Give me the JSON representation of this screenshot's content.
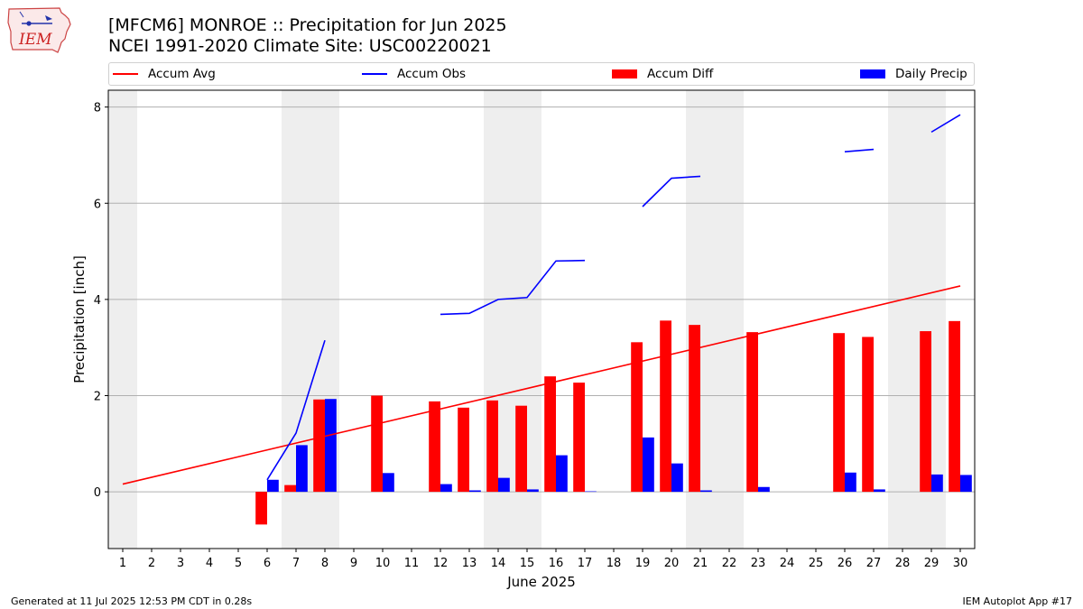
{
  "header": {
    "title_line1": "[MFCM6] MONROE :: Precipitation for Jun 2025",
    "title_line2": "NCEI 1991-2020 Climate Site: USC00220021"
  },
  "logo": {
    "text": "IEM",
    "icon": "iem-iowa-logo"
  },
  "footer": {
    "left": "Generated at 11 Jul 2025 12:53 PM CDT in 0.28s",
    "right": "IEM Autoplot App #17"
  },
  "colors": {
    "avg": "#ff0000",
    "obs": "#0000ff",
    "diff": "#ff0000",
    "daily": "#0000ff",
    "weekend": "#eeeeee",
    "grid": "#b0b0b0"
  },
  "chart_data": {
    "type": "bar",
    "xlabel": "June 2025",
    "ylabel": "Precipitation [inch]",
    "xlim": [
      0.5,
      30.5
    ],
    "ylim": [
      -1.18,
      8.35
    ],
    "yticks": [
      0,
      2,
      4,
      6,
      8
    ],
    "xticks": [
      1,
      2,
      3,
      4,
      5,
      6,
      7,
      8,
      9,
      10,
      11,
      12,
      13,
      14,
      15,
      16,
      17,
      18,
      19,
      20,
      21,
      22,
      23,
      24,
      25,
      26,
      27,
      28,
      29,
      30
    ],
    "grid": "horizontal",
    "legend_position": "top",
    "shaded_weekends": [
      [
        0.5,
        1.5
      ],
      [
        6.5,
        8.5
      ],
      [
        13.5,
        15.5
      ],
      [
        20.5,
        22.5
      ],
      [
        27.5,
        29.5
      ]
    ],
    "series": [
      {
        "name": "Accum Avg",
        "kind": "line",
        "x": [
          1,
          30
        ],
        "values": [
          0.16,
          4.28
        ]
      },
      {
        "name": "Accum Obs",
        "kind": "line",
        "segments": [
          [
            [
              6,
              0.25
            ],
            [
              7,
              1.22
            ],
            [
              8,
              3.15
            ]
          ],
          [
            [
              12,
              3.69
            ],
            [
              13,
              3.71
            ],
            [
              14,
              4.0
            ],
            [
              15,
              4.04
            ],
            [
              16,
              4.8
            ],
            [
              17,
              4.81
            ]
          ],
          [
            [
              19,
              5.93
            ],
            [
              20,
              6.52
            ],
            [
              21,
              6.56
            ]
          ],
          [
            [
              26,
              7.07
            ],
            [
              27,
              7.12
            ]
          ],
          [
            [
              29,
              7.48
            ],
            [
              30,
              7.84
            ]
          ]
        ]
      },
      {
        "name": "Accum Diff",
        "kind": "bar",
        "x": [
          6,
          7,
          8,
          10,
          12,
          13,
          14,
          15,
          16,
          17,
          19,
          20,
          21,
          23,
          26,
          27,
          29,
          30
        ],
        "values": [
          -0.68,
          0.14,
          1.92,
          2.0,
          1.88,
          1.75,
          1.9,
          1.79,
          2.4,
          2.27,
          3.11,
          3.56,
          3.47,
          3.32,
          3.3,
          3.22,
          3.34,
          3.55
        ]
      },
      {
        "name": "Daily Precip",
        "kind": "bar",
        "x": [
          6,
          7,
          8,
          10,
          12,
          13,
          14,
          15,
          16,
          17,
          19,
          20,
          21,
          23,
          26,
          27,
          29,
          30
        ],
        "values": [
          0.25,
          0.97,
          1.93,
          0.39,
          0.16,
          0.03,
          0.29,
          0.05,
          0.76,
          0.01,
          1.13,
          0.59,
          0.03,
          0.1,
          0.4,
          0.05,
          0.36,
          0.35
        ]
      }
    ]
  }
}
